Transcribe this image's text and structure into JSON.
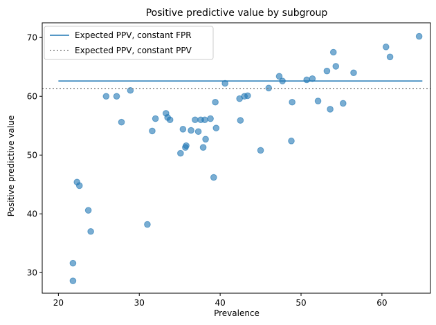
{
  "chart_data": {
    "type": "scatter",
    "title": "Positive predictive value by subgroup",
    "xlabel": "Prevalence",
    "ylabel": "Positive predictive value",
    "xlim": [
      18,
      66
    ],
    "ylim": [
      26.5,
      72.5
    ],
    "xticks": [
      20,
      30,
      40,
      50,
      60
    ],
    "yticks": [
      30,
      40,
      50,
      60,
      70
    ],
    "grid": false,
    "legend_position": "top-left",
    "colors": {
      "points": "#1f77b4",
      "fpr_line": "#1f77b4",
      "ppv_line": "#808080"
    },
    "points": [
      {
        "x": 21.8,
        "y": 31.6
      },
      {
        "x": 21.8,
        "y": 28.6
      },
      {
        "x": 22.3,
        "y": 45.4
      },
      {
        "x": 22.6,
        "y": 44.8
      },
      {
        "x": 23.7,
        "y": 40.6
      },
      {
        "x": 24.0,
        "y": 37.0
      },
      {
        "x": 25.9,
        "y": 60.0
      },
      {
        "x": 27.2,
        "y": 60.0
      },
      {
        "x": 27.8,
        "y": 55.6
      },
      {
        "x": 28.9,
        "y": 61.0
      },
      {
        "x": 31.0,
        "y": 38.2
      },
      {
        "x": 31.6,
        "y": 54.1
      },
      {
        "x": 32.0,
        "y": 56.2
      },
      {
        "x": 33.3,
        "y": 57.1
      },
      {
        "x": 33.5,
        "y": 56.4
      },
      {
        "x": 33.8,
        "y": 56.0
      },
      {
        "x": 35.1,
        "y": 50.3
      },
      {
        "x": 35.4,
        "y": 54.4
      },
      {
        "x": 35.7,
        "y": 51.3
      },
      {
        "x": 35.8,
        "y": 51.6
      },
      {
        "x": 36.4,
        "y": 54.2
      },
      {
        "x": 36.9,
        "y": 56.0
      },
      {
        "x": 37.3,
        "y": 54.0
      },
      {
        "x": 37.6,
        "y": 56.0
      },
      {
        "x": 37.9,
        "y": 51.3
      },
      {
        "x": 38.1,
        "y": 56.0
      },
      {
        "x": 38.2,
        "y": 52.7
      },
      {
        "x": 38.8,
        "y": 56.2
      },
      {
        "x": 39.2,
        "y": 46.2
      },
      {
        "x": 39.4,
        "y": 59.0
      },
      {
        "x": 39.5,
        "y": 54.6
      },
      {
        "x": 40.6,
        "y": 62.2
      },
      {
        "x": 42.4,
        "y": 59.6
      },
      {
        "x": 42.5,
        "y": 55.9
      },
      {
        "x": 43.0,
        "y": 60.0
      },
      {
        "x": 43.4,
        "y": 60.1
      },
      {
        "x": 45.0,
        "y": 50.8
      },
      {
        "x": 46.0,
        "y": 61.4
      },
      {
        "x": 47.3,
        "y": 63.4
      },
      {
        "x": 47.7,
        "y": 62.6
      },
      {
        "x": 48.8,
        "y": 52.4
      },
      {
        "x": 48.9,
        "y": 59.0
      },
      {
        "x": 50.7,
        "y": 62.8
      },
      {
        "x": 51.4,
        "y": 63.0
      },
      {
        "x": 52.1,
        "y": 59.2
      },
      {
        "x": 53.2,
        "y": 64.3
      },
      {
        "x": 53.6,
        "y": 57.8
      },
      {
        "x": 54.0,
        "y": 67.5
      },
      {
        "x": 54.3,
        "y": 65.1
      },
      {
        "x": 55.2,
        "y": 58.8
      },
      {
        "x": 56.5,
        "y": 64.0
      },
      {
        "x": 60.5,
        "y": 68.4
      },
      {
        "x": 61.0,
        "y": 66.7
      },
      {
        "x": 64.6,
        "y": 70.2
      }
    ],
    "lines": [
      {
        "name": "Expected PPV, constant FPR",
        "style": "solid",
        "x": [
          20,
          65
        ],
        "y": [
          62.6,
          62.6
        ]
      },
      {
        "name": "Expected PPV, constant PPV",
        "style": "dotted",
        "y": 61.3
      }
    ]
  }
}
